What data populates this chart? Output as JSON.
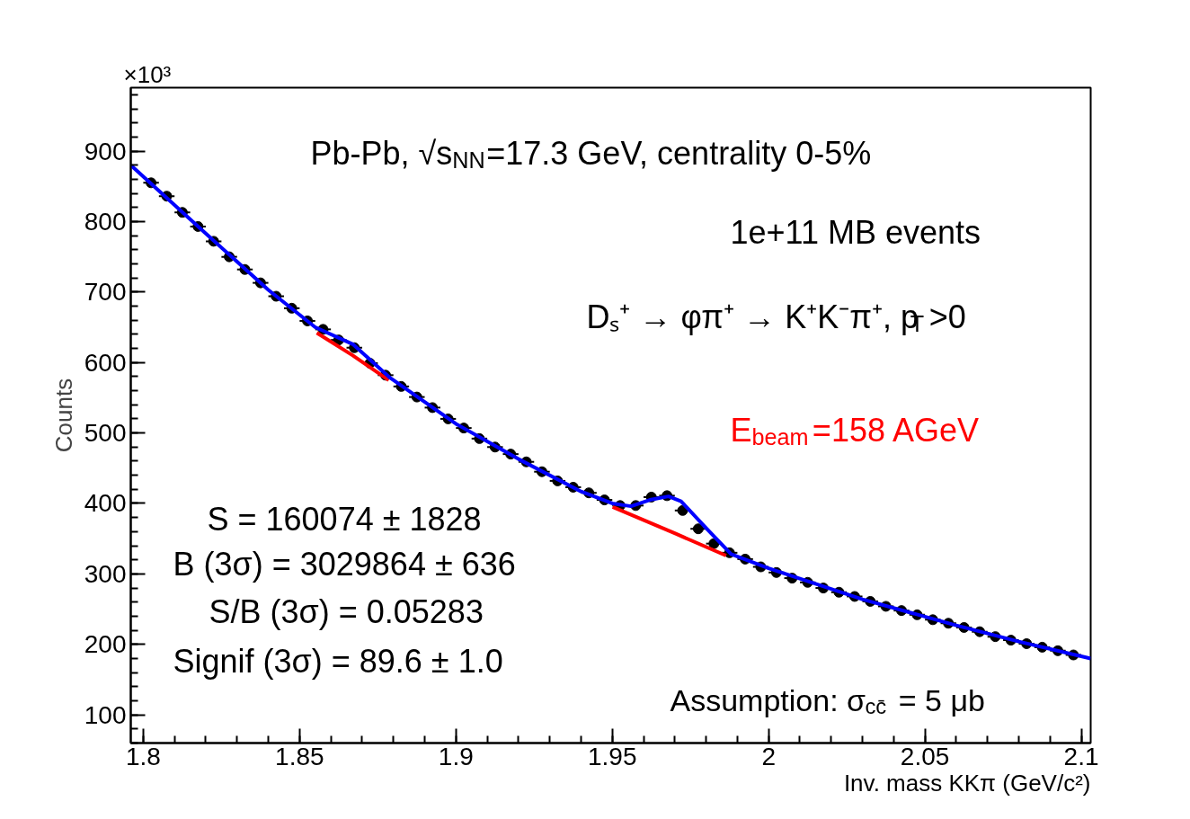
{
  "chart_data": {
    "type": "scatter",
    "xlabel": "Inv. mass KKπ (GeV/c²)",
    "ylabel": "Counts",
    "annotations": [
      "Pb-Pb, √s$_{NN}$=17.3 GeV, centrality 0-5%",
      "1e+11 MB events",
      "Dₛ⁺ → φπ⁺ → K⁺K⁻π⁺, p$_{T}$>0",
      "E$_{beam}$=158 AGeV",
      "S = 160074 ± 1828",
      "B (3σ) = 3029864 ± 636",
      "S/B (3σ) = 0.05283",
      "Signif (3σ) = 89.6 ± 1.0",
      "Assumption: σ$_{cc̄}$ = 5 μb",
      "×10³"
    ],
    "xlim": [
      1.796,
      2.103
    ],
    "ylim": [
      60,
      990
    ],
    "xticks": [
      1.8,
      1.85,
      1.9,
      1.95,
      2,
      2.05,
      2.1
    ],
    "yticks": [
      100,
      200,
      300,
      400,
      500,
      600,
      700,
      800,
      900
    ],
    "grid": false,
    "marker": "circle",
    "series": [
      {
        "color": "#000000",
        "x": [
          1.8025,
          1.8075,
          1.8125,
          1.8175,
          1.8225,
          1.8275,
          1.8325,
          1.8375,
          1.8425,
          1.8475,
          1.8525,
          1.8575,
          1.8625,
          1.8675,
          1.8725,
          1.8775,
          1.8825,
          1.8875,
          1.8925,
          1.8975,
          1.9025,
          1.9075,
          1.9125,
          1.9175,
          1.9225,
          1.9275,
          1.9325,
          1.9375,
          1.9425,
          1.9475,
          1.9525,
          1.9575,
          1.9625,
          1.9675,
          1.9725,
          1.9775,
          1.9825,
          1.9875,
          1.9925,
          1.9975,
          2.0025,
          2.0075,
          2.0125,
          2.0175,
          2.0225,
          2.0275,
          2.0325,
          2.0375,
          2.0425,
          2.0475,
          2.0525,
          2.0575,
          2.0625,
          2.0675,
          2.0725,
          2.0775,
          2.0825,
          2.0875,
          2.0925,
          2.0975
        ],
        "values": [
          855,
          836,
          813,
          793,
          772,
          750,
          732,
          713,
          694,
          677,
          659,
          647,
          632,
          621,
          599,
          582,
          566,
          551,
          536,
          520,
          507,
          492,
          480,
          470,
          459,
          445,
          432,
          423,
          415,
          405,
          397,
          397,
          409,
          411,
          390,
          364,
          343,
          330,
          321,
          310,
          302,
          294,
          288,
          280,
          274,
          268,
          261,
          254,
          248,
          242,
          235,
          230,
          224,
          218,
          211,
          206,
          201,
          196,
          191,
          185
        ],
        "xerrors": [
          0.0025,
          0.0025,
          0.0025,
          0.0025,
          0.0025,
          0.0025,
          0.0025,
          0.0025,
          0.0025,
          0.0025,
          0.0025,
          0.0025,
          0.0025,
          0.0025,
          0.0025,
          0.0025,
          0.0025,
          0.0025,
          0.0025,
          0.0025,
          0.0025,
          0.0025,
          0.0025,
          0.0025,
          0.0025,
          0.0025,
          0.0025,
          0.0025,
          0.0025,
          0.0025,
          0.0025,
          0.0025,
          0.0025,
          0.0025,
          0.0025,
          0.0025,
          0.0025,
          0.0025,
          0.0025,
          0.0025,
          0.0025,
          0.0025,
          0.0025,
          0.0025,
          0.0025,
          0.0025,
          0.0025,
          0.0025,
          0.0025,
          0.0025,
          0.0025,
          0.0025,
          0.0025,
          0.0025,
          0.0025,
          0.0025,
          0.0025,
          0.0025,
          0.0025,
          0.0025
        ]
      },
      {
        "type": "line",
        "marker": "none",
        "color": "#ff0000",
        "x": [
          1.8555,
          1.867,
          1.8785
        ],
        "values": [
          642,
          610,
          575
        ]
      },
      {
        "type": "line",
        "marker": "none",
        "color": "#ff0000",
        "x": [
          1.9501,
          1.9703,
          1.9864
        ],
        "values": [
          395,
          357,
          326
        ]
      },
      {
        "type": "line",
        "marker": "none",
        "color": "#0000ff",
        "x": [
          1.796,
          1.82,
          1.84,
          1.855,
          1.867,
          1.879,
          1.9,
          1.92,
          1.94,
          1.95,
          1.956,
          1.962,
          1.968,
          1.972,
          1.98,
          1.988,
          2.0,
          2.03,
          2.06,
          2.08,
          2.103
        ],
        "values": [
          880,
          783,
          703,
          650,
          626,
          578,
          513,
          463,
          417,
          400,
          396,
          405,
          410,
          403,
          365,
          328,
          308,
          264,
          227,
          204,
          180
        ]
      }
    ]
  }
}
